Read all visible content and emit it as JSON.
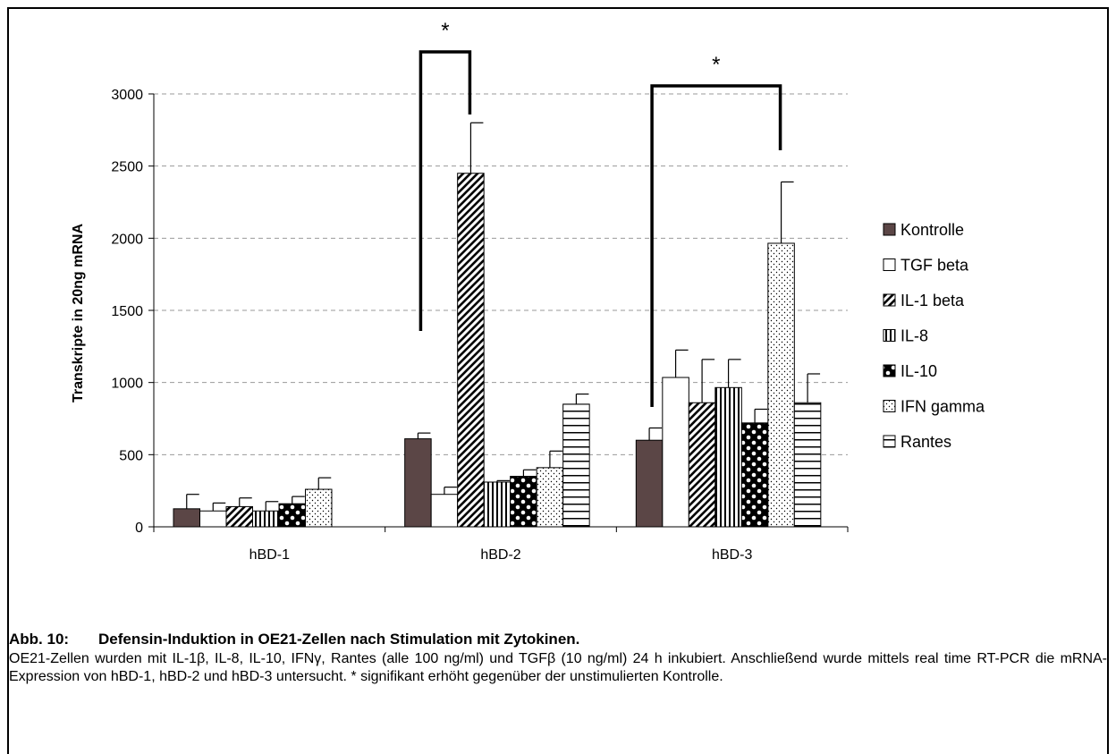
{
  "chart_data": {
    "type": "bar",
    "xlabel": "",
    "ylabel": "Transkripte in 20ng mRNA",
    "ylim": [
      0,
      3000
    ],
    "yticks": [
      0,
      500,
      1000,
      1500,
      2000,
      2500,
      3000
    ],
    "grid": "horizontal dashed",
    "legend_position": "right",
    "categories": [
      "hBD-1",
      "hBD-2",
      "hBD-3"
    ],
    "series": [
      {
        "name": "Kontrolle",
        "values": [
          125,
          610,
          600
        ],
        "errors": [
          100,
          40,
          85
        ],
        "pattern": "solid",
        "color": "#5b4646"
      },
      {
        "name": "TGF beta",
        "values": [
          110,
          225,
          1035
        ],
        "errors": [
          55,
          50,
          190
        ],
        "pattern": "white",
        "color": "#ffffff"
      },
      {
        "name": "IL-1 beta",
        "values": [
          140,
          2450,
          860
        ],
        "errors": [
          60,
          350,
          300
        ],
        "pattern": "diagonal",
        "color": "#000000"
      },
      {
        "name": "IL-8",
        "values": [
          110,
          310,
          965
        ],
        "errors": [
          65,
          10,
          195
        ],
        "pattern": "vertical",
        "color": "#000000"
      },
      {
        "name": "IL-10",
        "values": [
          160,
          350,
          720
        ],
        "errors": [
          50,
          45,
          95
        ],
        "pattern": "dots-big",
        "color": "#000000"
      },
      {
        "name": "IFN gamma",
        "values": [
          260,
          410,
          1965
        ],
        "errors": [
          80,
          115,
          425
        ],
        "pattern": "dots-fine",
        "color": "#000000"
      },
      {
        "name": "Rantes",
        "values": [
          null,
          850,
          860
        ],
        "errors": [
          null,
          70,
          200
        ],
        "pattern": "horizontal",
        "color": "#000000"
      }
    ],
    "annotations": [
      {
        "text": "*",
        "group": "hBD-2",
        "from_series": "Kontrolle",
        "to_series": "IL-1 beta",
        "meaning": "significant"
      },
      {
        "text": "*",
        "group": "hBD-3",
        "from_series": "Kontrolle",
        "to_series": "IFN gamma",
        "meaning": "significant"
      }
    ]
  },
  "caption": {
    "label": "Abb. 10:",
    "title": "Defensin-Induktion in OE21-Zellen nach Stimulation mit Zytokinen.",
    "body": "OE21-Zellen wurden mit IL-1β, IL-8, IL-10, IFNγ, Rantes (alle 100 ng/ml) und TGFβ (10 ng/ml) 24 h inkubiert. Anschließend wurde mittels real time RT-PCR die mRNA-Expression von hBD-1, hBD-2 und hBD-3 untersucht. * signifikant erhöht gegenüber der unstimulierten Kontrolle."
  }
}
